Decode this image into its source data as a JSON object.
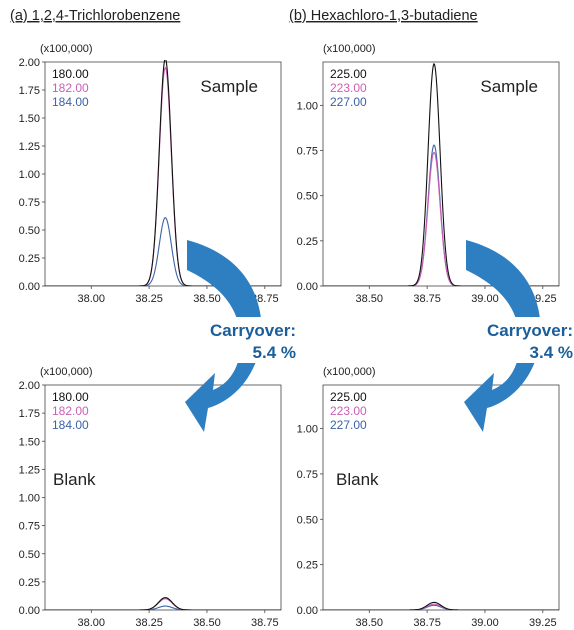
{
  "figure": {
    "title_a": "(a) 1,2,4-Trichlorobenzene",
    "title_b": "(b) Hexachloro-1,3-butadiene",
    "carryover_label": "Carryover:",
    "carryover_a": "5.4 %",
    "carryover_b": "3.4 %",
    "arrow_color": "#2e7fc1"
  },
  "chart_data": [
    {
      "type": "line",
      "panel": "(a) 1,2,4-Trichlorobenzene - Sample",
      "label": "Sample",
      "multiplier": "(x100,000)",
      "xlim": [
        37.8,
        38.82
      ],
      "ylim": [
        0,
        2.0
      ],
      "xticks": [
        "38.00",
        "38.25",
        "38.50",
        "38.75"
      ],
      "yticks": [
        "0.00",
        "0.25",
        "0.50",
        "0.75",
        "1.00",
        "1.25",
        "1.50",
        "1.75",
        "2.00"
      ],
      "series": [
        {
          "name": "180.00",
          "color": "#111111",
          "peak_x": 38.32,
          "peak_y": 2.03,
          "width": 0.026
        },
        {
          "name": "182.00",
          "color": "#cc5fb5",
          "peak_x": 38.32,
          "peak_y": 1.95,
          "width": 0.026
        },
        {
          "name": "184.00",
          "color": "#3c63a8",
          "peak_x": 38.32,
          "peak_y": 0.61,
          "width": 0.026
        }
      ]
    },
    {
      "type": "line",
      "panel": "(b) Hexachloro-1,3-butadiene - Sample",
      "label": "Sample",
      "multiplier": "(x100,000)",
      "xlim": [
        38.3,
        39.32
      ],
      "ylim": [
        0,
        1.24
      ],
      "xticks": [
        "38.50",
        "38.75",
        "39.00",
        "39.25"
      ],
      "yticks": [
        "0.00",
        "0.25",
        "0.50",
        "0.75",
        "1.00"
      ],
      "series": [
        {
          "name": "225.00",
          "color": "#111111",
          "peak_x": 38.78,
          "peak_y": 1.23,
          "width": 0.026
        },
        {
          "name": "223.00",
          "color": "#cc5fb5",
          "peak_x": 38.78,
          "peak_y": 0.74,
          "width": 0.026
        },
        {
          "name": "227.00",
          "color": "#3c63a8",
          "peak_x": 38.78,
          "peak_y": 0.78,
          "width": 0.026
        }
      ]
    },
    {
      "type": "line",
      "panel": "(a) 1,2,4-Trichlorobenzene - Blank",
      "label": "Blank",
      "multiplier": "(x100,000)",
      "xlim": [
        37.8,
        38.82
      ],
      "ylim": [
        0,
        2.0
      ],
      "xticks": [
        "38.00",
        "38.25",
        "38.50",
        "38.75"
      ],
      "yticks": [
        "0.00",
        "0.25",
        "0.50",
        "0.75",
        "1.00",
        "1.25",
        "1.50",
        "1.75",
        "2.00"
      ],
      "series": [
        {
          "name": "180.00",
          "color": "#111111",
          "peak_x": 38.32,
          "peak_y": 0.11,
          "width": 0.03
        },
        {
          "name": "182.00",
          "color": "#cc5fb5",
          "peak_x": 38.32,
          "peak_y": 0.1,
          "width": 0.03
        },
        {
          "name": "184.00",
          "color": "#3c63a8",
          "peak_x": 38.32,
          "peak_y": 0.035,
          "width": 0.03
        }
      ]
    },
    {
      "type": "line",
      "panel": "(b) Hexachloro-1,3-butadiene - Blank",
      "label": "Blank",
      "multiplier": "(x100,000)",
      "xlim": [
        38.3,
        39.32
      ],
      "ylim": [
        0,
        1.24
      ],
      "xticks": [
        "38.50",
        "38.75",
        "39.00",
        "39.25"
      ],
      "yticks": [
        "0.00",
        "0.25",
        "0.50",
        "0.75",
        "1.00"
      ],
      "series": [
        {
          "name": "225.00",
          "color": "#111111",
          "peak_x": 38.78,
          "peak_y": 0.042,
          "width": 0.03
        },
        {
          "name": "223.00",
          "color": "#cc5fb5",
          "peak_x": 38.78,
          "peak_y": 0.032,
          "width": 0.03
        },
        {
          "name": "227.00",
          "color": "#3c63a8",
          "peak_x": 38.78,
          "peak_y": 0.026,
          "width": 0.03
        }
      ]
    }
  ]
}
